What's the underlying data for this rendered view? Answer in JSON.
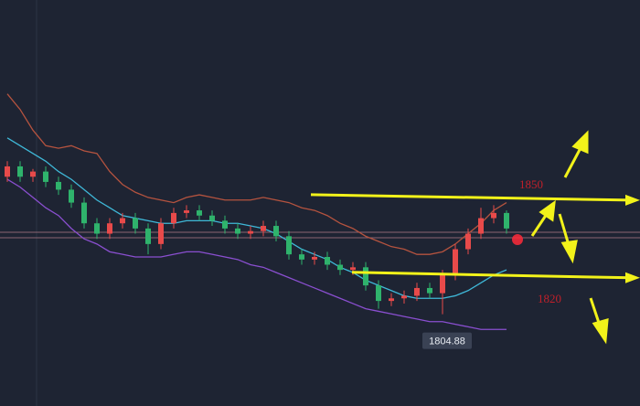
{
  "chart_data": {
    "type": "candlestick",
    "ylim": [
      1769.4,
      1926.3
    ],
    "up_color": "#e84a4a",
    "down_color": "#2fb36c",
    "open": [
      1858,
      1862,
      1858,
      1860,
      1856,
      1853,
      1848,
      1840,
      1836,
      1840,
      1842,
      1838,
      1832,
      1840,
      1844,
      1845,
      1843,
      1841,
      1838,
      1836,
      1837,
      1839,
      1835,
      1828,
      1826,
      1827,
      1824,
      1822,
      1823,
      1816,
      1810,
      1811,
      1812,
      1815,
      1813,
      1820,
      1830,
      1836,
      1842,
      1844
    ],
    "high": [
      1864,
      1864,
      1861,
      1862,
      1858,
      1855,
      1850,
      1842,
      1842,
      1844,
      1844,
      1840,
      1842,
      1846,
      1847,
      1847,
      1845,
      1843,
      1840,
      1839,
      1841,
      1841,
      1837,
      1830,
      1829,
      1829,
      1826,
      1825,
      1825,
      1818,
      1813,
      1814,
      1817,
      1817,
      1822,
      1832,
      1838,
      1846,
      1847,
      1845
    ],
    "low": [
      1856,
      1856,
      1856,
      1854,
      1851,
      1846,
      1838,
      1834,
      1834,
      1838,
      1836,
      1828,
      1830,
      1838,
      1842,
      1841,
      1839,
      1836,
      1834,
      1834,
      1835,
      1833,
      1826,
      1824,
      1824,
      1822,
      1820,
      1820,
      1814,
      1807,
      1808,
      1809,
      1810,
      1811,
      1804.88,
      1818,
      1828,
      1834,
      1840,
      1836
    ],
    "close": [
      1862,
      1858,
      1860,
      1856,
      1853,
      1848,
      1840,
      1836,
      1840,
      1842,
      1838,
      1832,
      1840,
      1844,
      1845,
      1843,
      1841,
      1838,
      1836,
      1837,
      1839,
      1835,
      1828,
      1826,
      1827,
      1824,
      1822,
      1823,
      1816,
      1810,
      1811,
      1812,
      1815,
      1813,
      1820,
      1830,
      1836,
      1842,
      1844,
      1838
    ],
    "series": [
      {
        "color": "#b5533f",
        "values": [
          1890,
          1884,
          1876,
          1870,
          1869,
          1870,
          1868,
          1867,
          1860,
          1855,
          1852,
          1850,
          1849,
          1848,
          1850,
          1851,
          1850,
          1849,
          1849,
          1849,
          1850,
          1849,
          1848,
          1846,
          1845,
          1843,
          1840,
          1838,
          1835,
          1833,
          1831,
          1830,
          1828,
          1828,
          1829,
          1832,
          1836,
          1840,
          1845,
          1848
        ]
      },
      {
        "color": "#3fb8d8",
        "values": [
          1873,
          1870,
          1867,
          1864,
          1860,
          1857,
          1853,
          1849,
          1846,
          1843,
          1842,
          1841,
          1840,
          1840,
          1841,
          1841,
          1841,
          1840,
          1840,
          1839,
          1838,
          1836,
          1833,
          1830,
          1828,
          1826,
          1823,
          1821,
          1818,
          1816,
          1814,
          1812,
          1811,
          1811,
          1811,
          1812,
          1814,
          1817,
          1820,
          1822
        ]
      },
      {
        "color": "#8a4fd0",
        "values": [
          1857,
          1854,
          1850,
          1846,
          1843,
          1838,
          1834,
          1832,
          1829,
          1828,
          1827,
          1827,
          1827,
          1828,
          1829,
          1829,
          1828,
          1827,
          1826,
          1824,
          1823,
          1821,
          1819,
          1817,
          1815,
          1813,
          1811,
          1809,
          1807,
          1806,
          1805,
          1804,
          1803,
          1802,
          1802,
          1801,
          1800,
          1799,
          1799,
          1799
        ]
      }
    ],
    "levels": [
      1850,
      1820
    ],
    "level_color": "#f2f21a",
    "low_label": 1804.88
  }
}
